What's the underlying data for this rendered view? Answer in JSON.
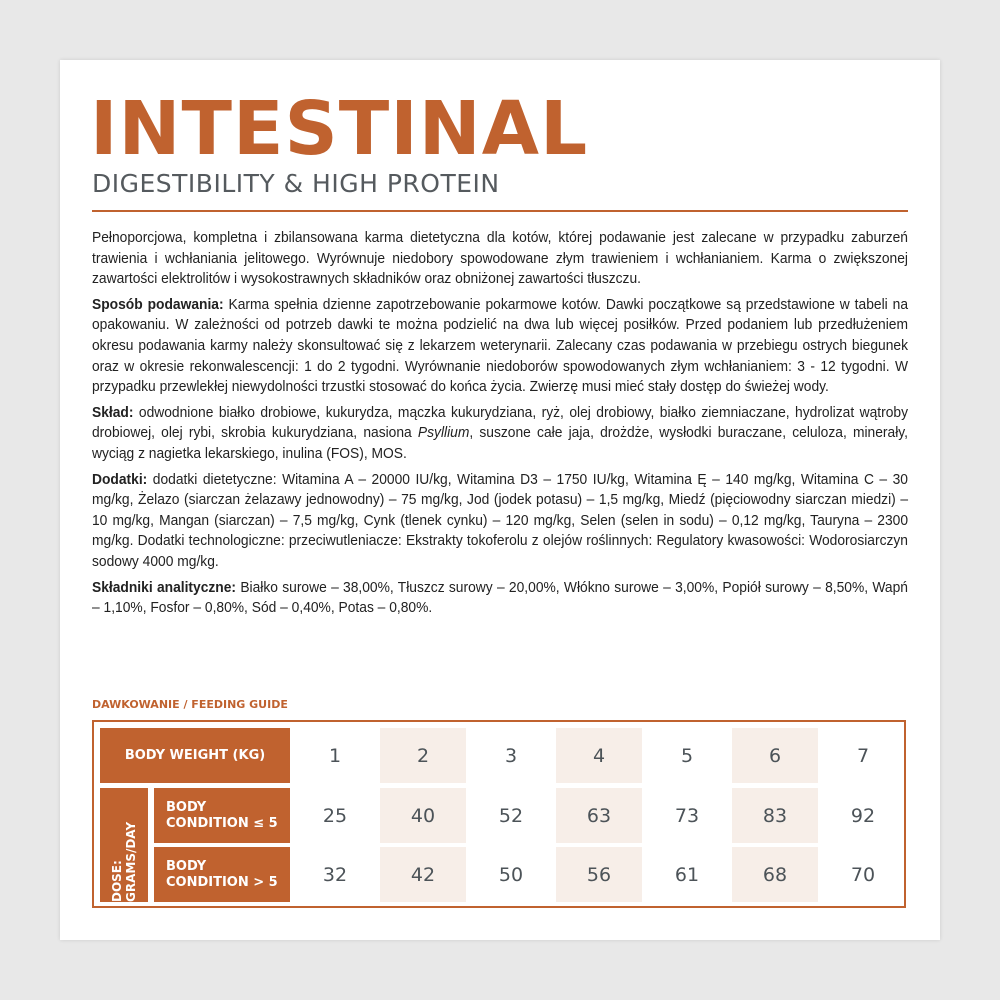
{
  "header": {
    "title": "INTESTINAL",
    "subtitle": "DIGESTIBILITY & HIGH PROTEIN"
  },
  "description": {
    "intro": "Pełnoporcjowa, kompletna i zbilansowana karma dietetyczna dla kotów, której podawanie jest zalecane w przypadku zaburzeń trawienia i wchłaniania jelitowego. Wyrównuje niedobory spowodowane złym trawieniem i wchłanianiem. Karma o zwiększonej zawartości elektrolitów i wysokostrawnych składników oraz obniżonej zawartości tłuszczu.",
    "feeding_label": "Sposób podawania:",
    "feeding_text": " Karma spełnia dzienne zapotrzebowanie pokarmowe kotów. Dawki początkowe są przedstawione w tabeli na opakowaniu. W zależności od potrzeb dawki te można podzielić na dwa lub więcej posiłków. Przed podaniem lub przedłużeniem okresu podawania karmy należy skonsultować się z lekarzem weterynarii. Zalecany czas podawania w przebiegu ostrych biegunek oraz w okresie rekonwalescencji: 1 do 2 tygodni. Wyrównanie niedoborów spowodowanych złym wchłanianiem: 3 - 12 tygodni. W przypadku przewlekłej niewydolności trzustki stosować do końca życia. Zwierzę musi mieć stały dostęp do świeżej wody.",
    "composition_label": "Skład:",
    "composition_text_1": " odwodnione białko drobiowe, kukurydza, mączka kukurydziana, ryż, olej drobiowy, białko ziemniaczane, hydrolizat wątroby drobiowej, olej rybi, skrobia kukurydziana, nasiona ",
    "composition_italic": "Psyllium",
    "composition_text_2": ", suszone całe jaja, drożdże, wysłodki buraczane, celuloza, minerały, wyciąg z nagietka lekarskiego, inulina (FOS), MOS.",
    "additives_label": "Dodatki:",
    "additives_text": " dodatki dietetyczne: Witamina A – 20000 IU/kg, Witamina D3 – 1750 IU/kg, Witamina Ę – 140 mg/kg, Witamina C – 30 mg/kg, Żelazo (siarczan żelazawy jednowodny) – 75 mg/kg, Jod (jodek potasu) – 1,5 mg/kg, Miedź (pięciowodny siarczan miedzi) – 10 mg/kg, Mangan (siarczan) – 7,5 mg/kg, Cynk (tlenek cynku) – 120 mg/kg, Selen (selen in sodu) – 0,12 mg/kg, Tauryna – 2300 mg/kg. Dodatki technologiczne: przeciwutleniacze: Ekstrakty tokoferolu z olejów roślinnych: Regulatory kwasowości: Wodorosiarczyn sodowy 4000 mg/kg.",
    "analytical_label": "Składniki analityczne:",
    "analytical_text": " Białko surowe – 38,00%, Tłuszcz surowy – 20,00%, Włókno surowe – 3,00%, Popiół surowy – 8,50%, Wapń – 1,10%, Fosfor – 0,80%, Sód – 0,40%, Potas – 0,80%."
  },
  "feeding_guide": {
    "heading": "DAWKOWANIE / FEEDING GUIDE",
    "weight_header": "BODY WEIGHT (KG)",
    "dose_header": "DOSE: GRAMS/DAY",
    "row1_label": "BODY CONDITION ≤ 5",
    "row2_label": "BODY CONDITION > 5",
    "weights": [
      "1",
      "2",
      "3",
      "4",
      "5",
      "6",
      "7"
    ],
    "row1": [
      "25",
      "40",
      "52",
      "63",
      "73",
      "83",
      "92"
    ],
    "row2": [
      "32",
      "42",
      "50",
      "56",
      "61",
      "68",
      "70"
    ]
  },
  "colors": {
    "accent": "#c0622f",
    "shade": "#f7eee8"
  }
}
